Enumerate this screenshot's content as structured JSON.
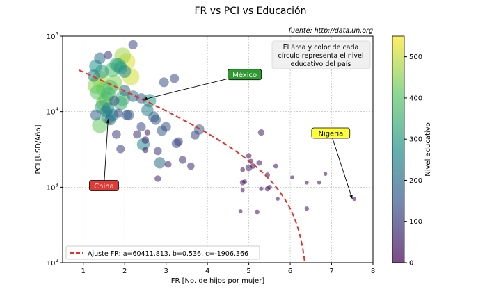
{
  "chart_data": {
    "type": "scatter",
    "title": "FR vs PCI vs Educación",
    "source": "fuente: http://data.un.org",
    "xlabel": "FR [No. de hijos por mujer]",
    "ylabel": "PCI [USD/Año]",
    "xlim": [
      0.5,
      8
    ],
    "ylim": [
      100,
      100000
    ],
    "yscale": "log",
    "grid": true,
    "x_ticks": [
      1,
      2,
      3,
      4,
      5,
      6,
      7,
      8
    ],
    "y_ticks": [
      100,
      1000,
      10000,
      100000
    ],
    "note": "El área y color de cada\ncírculo representa el nivel\neducativo del país",
    "colorbar": {
      "label": "Nivel educativo",
      "min": 0,
      "max": 550,
      "ticks": [
        0,
        100,
        200,
        300,
        400,
        500
      ],
      "colormap": "viridis"
    },
    "fit": {
      "label": "Ajuste FR: a=60411.813, b=0.536, c=-1906.366",
      "a": 60411.813,
      "b": 0.536,
      "c": -1906.366,
      "color": "#e8302a"
    },
    "annotations": [
      {
        "text": "México",
        "x": 2.45,
        "y": 14500,
        "tx": 4.9,
        "ty": 31000,
        "bg": "#2f9a31",
        "fg": "#ffffff"
      },
      {
        "text": "China",
        "x": 1.6,
        "y": 8000,
        "tx": 1.5,
        "ty": 1050,
        "bg": "#e03a35",
        "fg": "#ffffff"
      },
      {
        "text": "Nigeria",
        "x": 7.5,
        "y": 700,
        "tx": 6.98,
        "ty": 5200,
        "bg": "#ffff3a",
        "fg": "#000000"
      }
    ],
    "points": [
      {
        "x": 1.4,
        "y": 51000,
        "edu": 210
      },
      {
        "x": 1.85,
        "y": 41000,
        "edu": 350
      },
      {
        "x": 1.95,
        "y": 55000,
        "edu": 470
      },
      {
        "x": 2.05,
        "y": 46000,
        "edu": 520
      },
      {
        "x": 2.2,
        "y": 77000,
        "edu": 120
      },
      {
        "x": 1.6,
        "y": 56000,
        "edu": 90
      },
      {
        "x": 1.3,
        "y": 40000,
        "edu": 280
      },
      {
        "x": 1.45,
        "y": 34000,
        "edu": 310
      },
      {
        "x": 1.25,
        "y": 30000,
        "edu": 240
      },
      {
        "x": 1.7,
        "y": 36000,
        "edu": 380
      },
      {
        "x": 1.8,
        "y": 42000,
        "edu": 330
      },
      {
        "x": 1.9,
        "y": 38000,
        "edu": 300
      },
      {
        "x": 2.0,
        "y": 34000,
        "edu": 260
      },
      {
        "x": 2.15,
        "y": 29000,
        "edu": 510
      },
      {
        "x": 1.3,
        "y": 22000,
        "edu": 450
      },
      {
        "x": 1.4,
        "y": 27000,
        "edu": 480
      },
      {
        "x": 1.5,
        "y": 20000,
        "edu": 430
      },
      {
        "x": 1.35,
        "y": 18000,
        "edu": 400
      },
      {
        "x": 1.55,
        "y": 14500,
        "edu": 420
      },
      {
        "x": 1.6,
        "y": 17000,
        "edu": 360
      },
      {
        "x": 1.65,
        "y": 21000,
        "edu": 390
      },
      {
        "x": 1.75,
        "y": 24000,
        "edu": 440
      },
      {
        "x": 1.5,
        "y": 13000,
        "edu": 460
      },
      {
        "x": 1.45,
        "y": 11500,
        "edu": 320
      },
      {
        "x": 1.6,
        "y": 11000,
        "edu": 250
      },
      {
        "x": 1.9,
        "y": 13000,
        "edu": 340
      },
      {
        "x": 1.95,
        "y": 15000,
        "edu": 380
      },
      {
        "x": 2.0,
        "y": 19000,
        "edu": 200
      },
      {
        "x": 2.2,
        "y": 16000,
        "edu": 210
      },
      {
        "x": 2.4,
        "y": 15000,
        "edu": 160
      },
      {
        "x": 1.75,
        "y": 14000,
        "edu": 150
      },
      {
        "x": 1.55,
        "y": 10000,
        "edu": 230
      },
      {
        "x": 1.7,
        "y": 9000,
        "edu": 260
      },
      {
        "x": 1.3,
        "y": 9000,
        "edu": 180
      },
      {
        "x": 1.6,
        "y": 8500,
        "edu": 330
      },
      {
        "x": 1.65,
        "y": 7800,
        "edu": 190
      },
      {
        "x": 1.4,
        "y": 6600,
        "edu": 420
      },
      {
        "x": 1.85,
        "y": 9500,
        "edu": 120
      },
      {
        "x": 2.05,
        "y": 9000,
        "edu": 150
      },
      {
        "x": 2.1,
        "y": 9000,
        "edu": 170
      },
      {
        "x": 1.8,
        "y": 5000,
        "edu": 110
      },
      {
        "x": 1.9,
        "y": 3200,
        "edu": 100
      },
      {
        "x": 2.6,
        "y": 14000,
        "edu": 290
      },
      {
        "x": 2.55,
        "y": 10500,
        "edu": 240
      },
      {
        "x": 2.7,
        "y": 8500,
        "edu": 180
      },
      {
        "x": 2.75,
        "y": 7800,
        "edu": 150
      },
      {
        "x": 2.4,
        "y": 6300,
        "edu": 120
      },
      {
        "x": 2.95,
        "y": 24500,
        "edu": 140
      },
      {
        "x": 2.9,
        "y": 5600,
        "edu": 160
      },
      {
        "x": 3.0,
        "y": 6300,
        "edu": 140
      },
      {
        "x": 2.3,
        "y": 5000,
        "edu": 90
      },
      {
        "x": 2.5,
        "y": 4200,
        "edu": 70
      },
      {
        "x": 2.45,
        "y": 3700,
        "edu": 260
      },
      {
        "x": 2.85,
        "y": 2100,
        "edu": 200
      },
      {
        "x": 2.8,
        "y": 3000,
        "edu": 90
      },
      {
        "x": 3.2,
        "y": 27500,
        "edu": 120
      },
      {
        "x": 3.25,
        "y": 3800,
        "edu": 130
      },
      {
        "x": 3.3,
        "y": 4000,
        "edu": 110
      },
      {
        "x": 3.8,
        "y": 5800,
        "edu": 160
      },
      {
        "x": 3.7,
        "y": 4900,
        "edu": 110
      },
      {
        "x": 3.4,
        "y": 2300,
        "edu": 80
      },
      {
        "x": 3.6,
        "y": 1900,
        "edu": 70
      },
      {
        "x": 3.05,
        "y": 2000,
        "edu": 60
      },
      {
        "x": 2.8,
        "y": 1300,
        "edu": 50
      },
      {
        "x": 2.5,
        "y": 3100,
        "edu": 40
      },
      {
        "x": 2.55,
        "y": 5300,
        "edu": 40
      },
      {
        "x": 5.3,
        "y": 5300,
        "edu": 50
      },
      {
        "x": 5.0,
        "y": 2600,
        "edu": 30
      },
      {
        "x": 5.05,
        "y": 2200,
        "edu": 25
      },
      {
        "x": 5.25,
        "y": 2100,
        "edu": 35
      },
      {
        "x": 5.0,
        "y": 1800,
        "edu": 55
      },
      {
        "x": 5.1,
        "y": 1900,
        "edu": 30
      },
      {
        "x": 4.85,
        "y": 1700,
        "edu": 20
      },
      {
        "x": 5.65,
        "y": 1900,
        "edu": 20
      },
      {
        "x": 5.45,
        "y": 1450,
        "edu": 25
      },
      {
        "x": 4.9,
        "y": 1180,
        "edu": 20
      },
      {
        "x": 4.85,
        "y": 1150,
        "edu": 30
      },
      {
        "x": 5.45,
        "y": 950,
        "edu": 25
      },
      {
        "x": 5.5,
        "y": 1000,
        "edu": 20
      },
      {
        "x": 5.3,
        "y": 950,
        "edu": 15
      },
      {
        "x": 4.85,
        "y": 920,
        "edu": 15
      },
      {
        "x": 5.2,
        "y": 470,
        "edu": 20
      },
      {
        "x": 4.8,
        "y": 480,
        "edu": 12
      },
      {
        "x": 6.05,
        "y": 1350,
        "edu": 12
      },
      {
        "x": 6.4,
        "y": 1150,
        "edu": 12
      },
      {
        "x": 6.7,
        "y": 1150,
        "edu": 12
      },
      {
        "x": 6.85,
        "y": 1500,
        "edu": 10
      },
      {
        "x": 5.7,
        "y": 700,
        "edu": 10
      },
      {
        "x": 6.4,
        "y": 520,
        "edu": 15
      },
      {
        "x": 7.55,
        "y": 700,
        "edu": 12
      }
    ]
  }
}
